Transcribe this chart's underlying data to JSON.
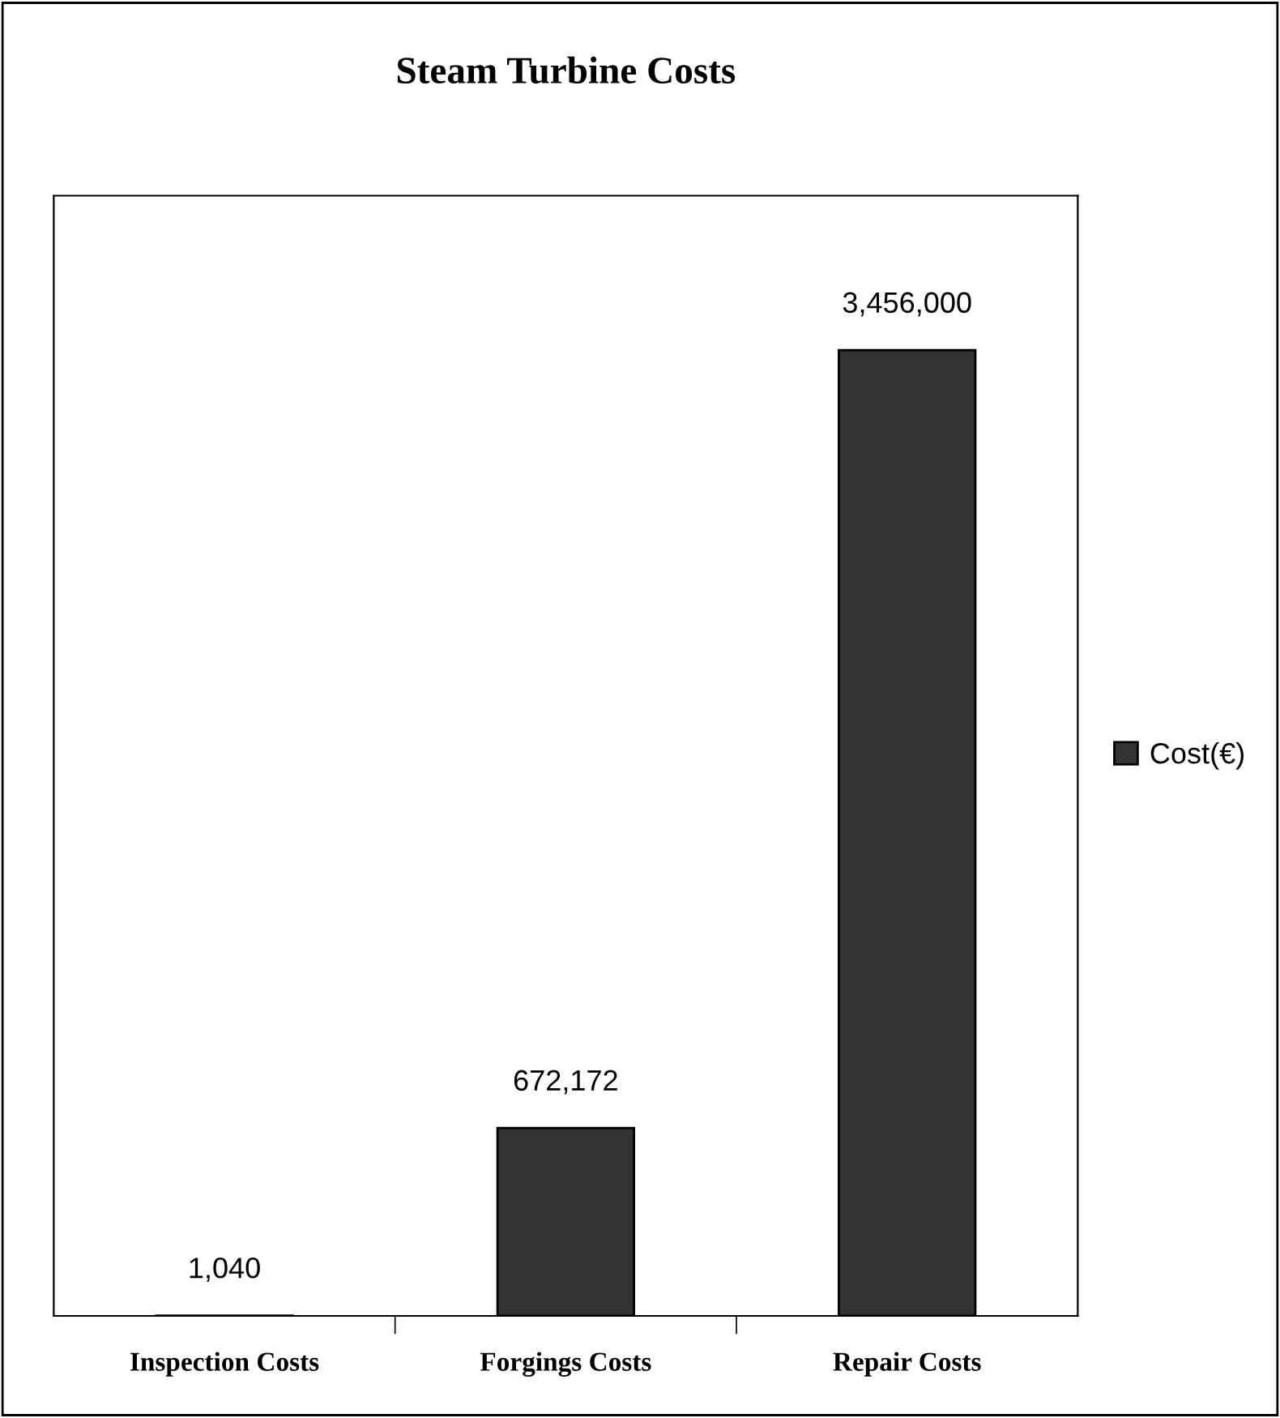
{
  "chart_data": {
    "type": "bar",
    "title": "Steam Turbine Costs",
    "categories": [
      "Inspection Costs",
      "Forgings Costs",
      "Repair Costs"
    ],
    "series": [
      {
        "name": "Cost(€)",
        "color": "#333333",
        "values": [
          1040,
          672172,
          3456000
        ],
        "value_labels": [
          "1,040",
          "672,172",
          "3,456,000"
        ]
      }
    ],
    "tick_labels": "x",
    "grid": false,
    "legend": "right"
  }
}
